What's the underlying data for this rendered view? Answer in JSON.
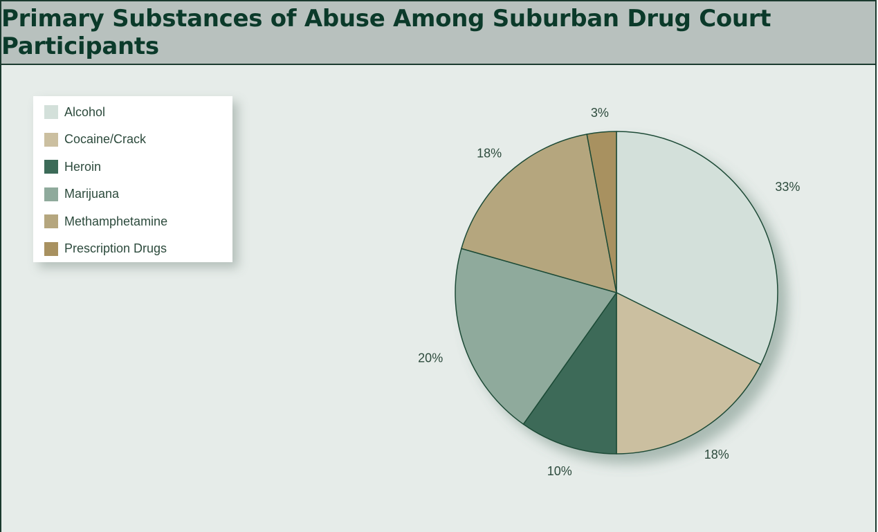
{
  "chart_data": {
    "type": "pie",
    "title": "Primary Substances of Abuse Among Suburban Drug Court Participants",
    "categories": [
      "Alcohol",
      "Cocaine/Crack",
      "Heroin",
      "Marijuana",
      "Methamphetamine",
      "Prescription Drugs"
    ],
    "values": [
      33,
      18,
      10,
      20,
      18,
      3
    ],
    "labels": [
      "33%",
      "18%",
      "10%",
      "20%",
      "18%",
      "3%"
    ],
    "colors": [
      "#d3e0da",
      "#cbbfa0",
      "#3c6b58",
      "#8faa9c",
      "#b5a67e",
      "#a89160"
    ],
    "legend_position": "top-left"
  }
}
